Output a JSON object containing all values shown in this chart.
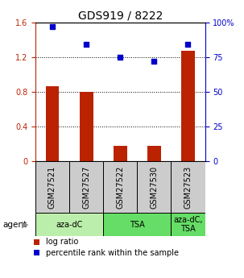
{
  "title": "GDS919 / 8222",
  "samples": [
    "GSM27521",
    "GSM27527",
    "GSM27522",
    "GSM27530",
    "GSM27523"
  ],
  "log_ratios": [
    0.86,
    0.8,
    0.18,
    0.18,
    1.27
  ],
  "percentile_ranks": [
    97,
    84,
    75,
    72,
    84
  ],
  "bar_color": "#BB2200",
  "dot_color": "#0000CC",
  "ylim_left": [
    0,
    1.6
  ],
  "ylim_right": [
    0,
    100
  ],
  "yticks_left": [
    0,
    0.4,
    0.8,
    1.2,
    1.6
  ],
  "ytick_labels_left": [
    "0",
    "0.4",
    "0.8",
    "1.2",
    "1.6"
  ],
  "yticks_right": [
    0,
    25,
    50,
    75,
    100
  ],
  "ytick_labels_right": [
    "0",
    "25",
    "50",
    "75",
    "100%"
  ],
  "agent_groups": [
    {
      "label": "aza-dC",
      "span": [
        0,
        2
      ],
      "color": "#BBEEAA"
    },
    {
      "label": "TSA",
      "span": [
        2,
        4
      ],
      "color": "#66DD66"
    },
    {
      "label": "aza-dC,\nTSA",
      "span": [
        4,
        5
      ],
      "color": "#66DD66"
    }
  ],
  "sample_box_color": "#CCCCCC",
  "bar_width": 0.4,
  "legend_items": [
    {
      "color": "#BB2200",
      "label": "log ratio"
    },
    {
      "color": "#0000CC",
      "label": "percentile rank within the sample"
    }
  ]
}
